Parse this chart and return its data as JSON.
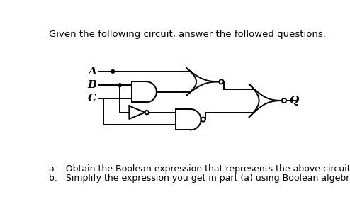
{
  "title": "Given the following circuit, answer the followed questions.",
  "question_a": "a.   Obtain the Boolean expression that represents the above circuit.",
  "question_b": "b.   Simplify the expression you get in part (a) using Boolean algebra. (Show steps)",
  "bg_color": "#ffffff",
  "line_color": "#000000",
  "font_size_title": 9.5,
  "font_size_label": 11,
  "font_size_q": 9,
  "bubble_r": 4,
  "lw": 1.4
}
